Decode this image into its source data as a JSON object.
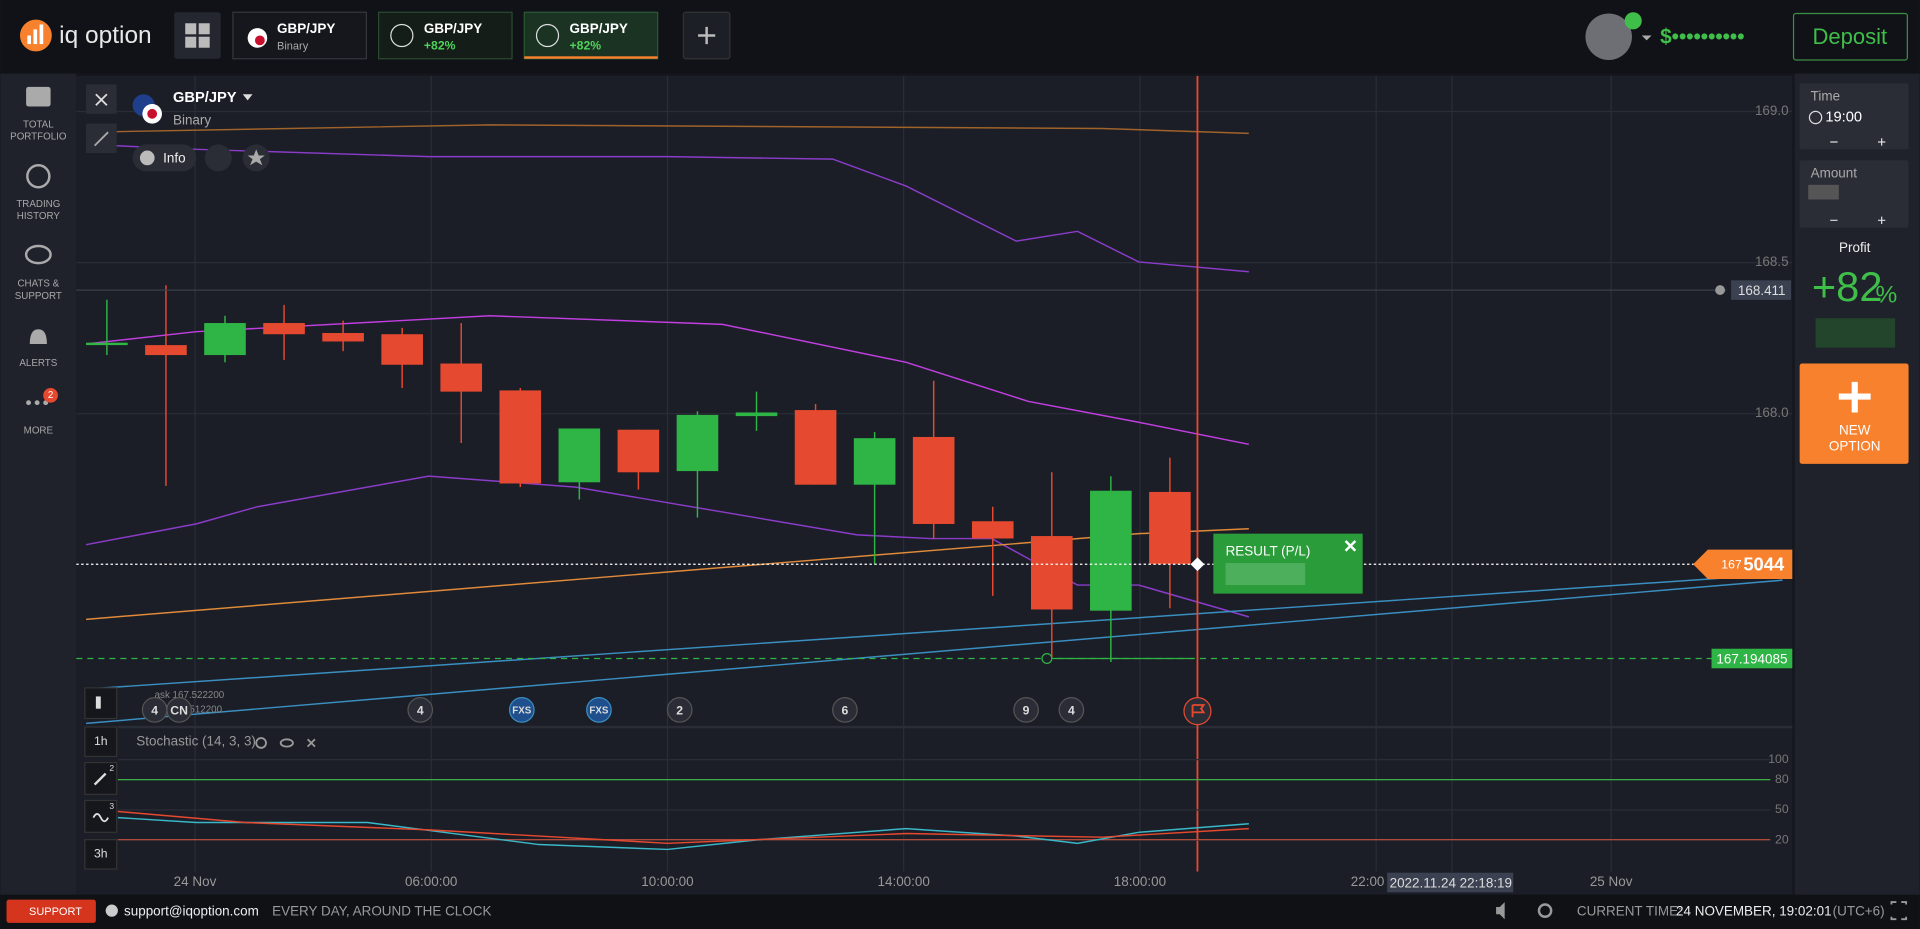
{
  "header": {
    "logo": "iq option",
    "tabs": [
      {
        "symbol": "GBP/JPY",
        "detail": "Binary"
      },
      {
        "symbol": "GBP/JPY",
        "detail": "+82%"
      },
      {
        "symbol": "GBP/JPY",
        "detail": "+82%"
      }
    ],
    "balance": "$••••••••••",
    "deposit": "Deposit"
  },
  "sidebar": {
    "items": [
      {
        "lines": [
          "TOTAL",
          "PORTFOLIO"
        ]
      },
      {
        "lines": [
          "TRADING",
          "HISTORY"
        ]
      },
      {
        "lines": [
          "CHATS &",
          "SUPPORT"
        ]
      },
      {
        "lines": [
          "ALERTS"
        ]
      },
      {
        "lines": [
          "MORE"
        ],
        "badge": "2"
      }
    ]
  },
  "chart_data": {
    "type": "candlestick",
    "title": "GBP/JPY",
    "subtitle": "Binary",
    "up_color": "#2fb545",
    "down_color": "#e5492f",
    "ylim": [
      166.971,
      169.118
    ],
    "yticks": [
      {
        "value": 169,
        "label": "169.0"
      },
      {
        "value": 168.5,
        "label": "168.5"
      },
      {
        "value": 168,
        "label": "168.0"
      }
    ],
    "candles": [
      {
        "open": 168.227,
        "high": 168.377,
        "low": 168.194,
        "close": 168.235
      },
      {
        "open": 168.227,
        "high": 168.425,
        "low": 167.761,
        "close": 168.194
      },
      {
        "open": 168.194,
        "high": 168.324,
        "low": 168.17,
        "close": 168.3
      },
      {
        "open": 168.3,
        "high": 168.36,
        "low": 168.178,
        "close": 168.263
      },
      {
        "open": 168.267,
        "high": 168.308,
        "low": 168.207,
        "close": 168.239
      },
      {
        "open": 168.263,
        "high": 168.284,
        "low": 168.085,
        "close": 168.162
      },
      {
        "open": 168.166,
        "high": 168.3,
        "low": 167.903,
        "close": 168.073
      },
      {
        "open": 168.077,
        "high": 168.085,
        "low": 167.757,
        "close": 167.769
      },
      {
        "open": 167.773,
        "high": 167.951,
        "low": 167.716,
        "close": 167.951
      },
      {
        "open": 167.947,
        "high": 167.947,
        "low": 167.749,
        "close": 167.806
      },
      {
        "open": 167.81,
        "high": 168.008,
        "low": 167.656,
        "close": 167.996
      },
      {
        "open": 167.992,
        "high": 168.073,
        "low": 167.943,
        "close": 168.004
      },
      {
        "open": 168.012,
        "high": 168.032,
        "low": 167.765,
        "close": 167.765
      },
      {
        "open": 167.765,
        "high": 167.939,
        "low": 167.502,
        "close": 167.919
      },
      {
        "open": 167.923,
        "high": 168.109,
        "low": 167.587,
        "close": 167.635
      },
      {
        "open": 167.644,
        "high": 167.692,
        "low": 167.397,
        "close": 167.587
      },
      {
        "open": 167.595,
        "high": 167.806,
        "low": 167.194,
        "close": 167.352
      },
      {
        "open": 167.348,
        "high": 167.793,
        "low": 167.178,
        "close": 167.745
      },
      {
        "open": 167.741,
        "high": 167.854,
        "low": 167.356,
        "close": 167.502
      }
    ],
    "price_tags": {
      "alert": "168.411",
      "current_main": "167",
      "current_digits": "5044",
      "target": "167.194085"
    },
    "ask": "ask 167.522200",
    "bid": "bid 167.512200",
    "events": [
      "4",
      "CN",
      "4",
      "FXS",
      "FXS",
      "2",
      "6",
      "9",
      "4"
    ],
    "x_labels": [
      "24 Nov",
      "06:00:00",
      "10:00:00",
      "14:00:00",
      "18:00:00",
      "22:00",
      "25 Nov"
    ],
    "cursor_time": "2022.11.24 22:18:19",
    "result": "RESULT (P/L)"
  },
  "toolbar": {
    "info": "Info",
    "intervals": [
      "1h",
      "3h"
    ],
    "badges": [
      "2",
      "3"
    ]
  },
  "stochastic": {
    "title": "Stochastic (14, 3, 3)",
    "ylim": [
      -10,
      130
    ],
    "yticks": [
      100,
      80,
      50,
      20
    ]
  },
  "trade_panel": {
    "time_label": "Time",
    "time": "19:00",
    "amount_label": "Amount",
    "profit_label": "Profit",
    "profit": "+82",
    "profit_unit": "%",
    "new_option": [
      "NEW",
      "OPTION"
    ]
  },
  "footer": {
    "support": "SUPPORT",
    "email": "support@iqoption.com",
    "hours": "EVERY DAY, AROUND THE CLOCK",
    "time_label": "CURRENT TIME:",
    "time": "24 NOVEMBER, 19:02:01",
    "zone": "(UTC+6)"
  }
}
